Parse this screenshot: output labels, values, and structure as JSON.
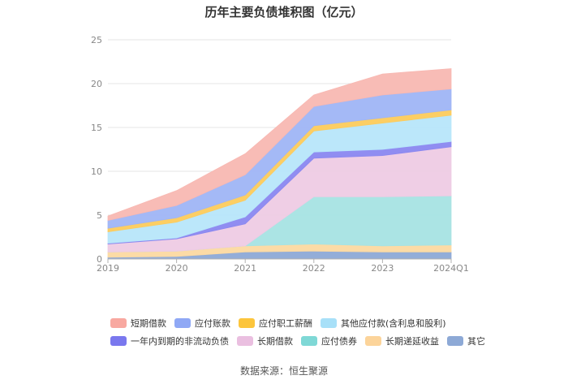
{
  "page_title": "历年主要负债堆积图（亿元）",
  "source": "数据来源：恒生聚源",
  "chart_data": {
    "type": "area",
    "stacked": true,
    "title": "历年主要负债堆积图（亿元）",
    "categories": [
      "2019",
      "2020",
      "2021",
      "2022",
      "2023",
      "2024Q1"
    ],
    "ylim": [
      0,
      25
    ],
    "yticks": [
      "0",
      "5",
      "10",
      "15",
      "20",
      "25"
    ],
    "grid": true,
    "legend_position": "bottom",
    "series": [
      {
        "name": "其它",
        "color": "#8DA9D6",
        "values": [
          0.2,
          0.3,
          0.8,
          0.9,
          0.8,
          0.8
        ]
      },
      {
        "name": "长期递延收益",
        "color": "#FCD9A1",
        "values": [
          0.6,
          0.6,
          0.7,
          0.8,
          0.7,
          0.8
        ]
      },
      {
        "name": "应付债券",
        "color": "#A7E3E3",
        "values": [
          0,
          0,
          0,
          5.4,
          5.6,
          5.6
        ]
      },
      {
        "name": "长期借款",
        "color": "#EECBE4",
        "values": [
          0.9,
          1.4,
          2.5,
          4.4,
          4.7,
          5.6
        ]
      },
      {
        "name": "一年内到期的非流动负债",
        "color": "#8A87F0",
        "values": [
          0.1,
          0.1,
          0.8,
          0.7,
          0.7,
          0.6
        ]
      },
      {
        "name": "其他应付款(含利息和股利)",
        "color": "#B7E6FA",
        "values": [
          1.3,
          1.8,
          1.9,
          2.4,
          3.0,
          3.0
        ]
      },
      {
        "name": "应付职工薪酬",
        "color": "#FCCB5C",
        "values": [
          0.4,
          0.5,
          0.6,
          0.6,
          0.6,
          0.6
        ]
      },
      {
        "name": "应付账款",
        "color": "#9FB5F5",
        "values": [
          0.9,
          1.4,
          2.3,
          2.2,
          2.6,
          2.4
        ]
      },
      {
        "name": "短期借款",
        "color": "#F8B8B2",
        "values": [
          0.5,
          1.7,
          2.4,
          1.3,
          2.4,
          2.3
        ]
      }
    ]
  },
  "legend": {
    "row1": [
      {
        "label": "短期借款",
        "color": "#F8A8A0"
      },
      {
        "label": "应付账款",
        "color": "#8FA8F5"
      },
      {
        "label": "应付职工薪酬",
        "color": "#FCC53C"
      },
      {
        "label": "其他应付款(含利息和股利)",
        "color": "#A8E0F8"
      }
    ],
    "row2": [
      {
        "label": "一年内到期的非流动负债",
        "color": "#7A78EE"
      },
      {
        "label": "长期借款",
        "color": "#EABFE0"
      },
      {
        "label": "应付债券",
        "color": "#7FD8D6"
      },
      {
        "label": "长期递延收益",
        "color": "#FCD49A"
      },
      {
        "label": "其它",
        "color": "#8DA9D6"
      }
    ]
  }
}
